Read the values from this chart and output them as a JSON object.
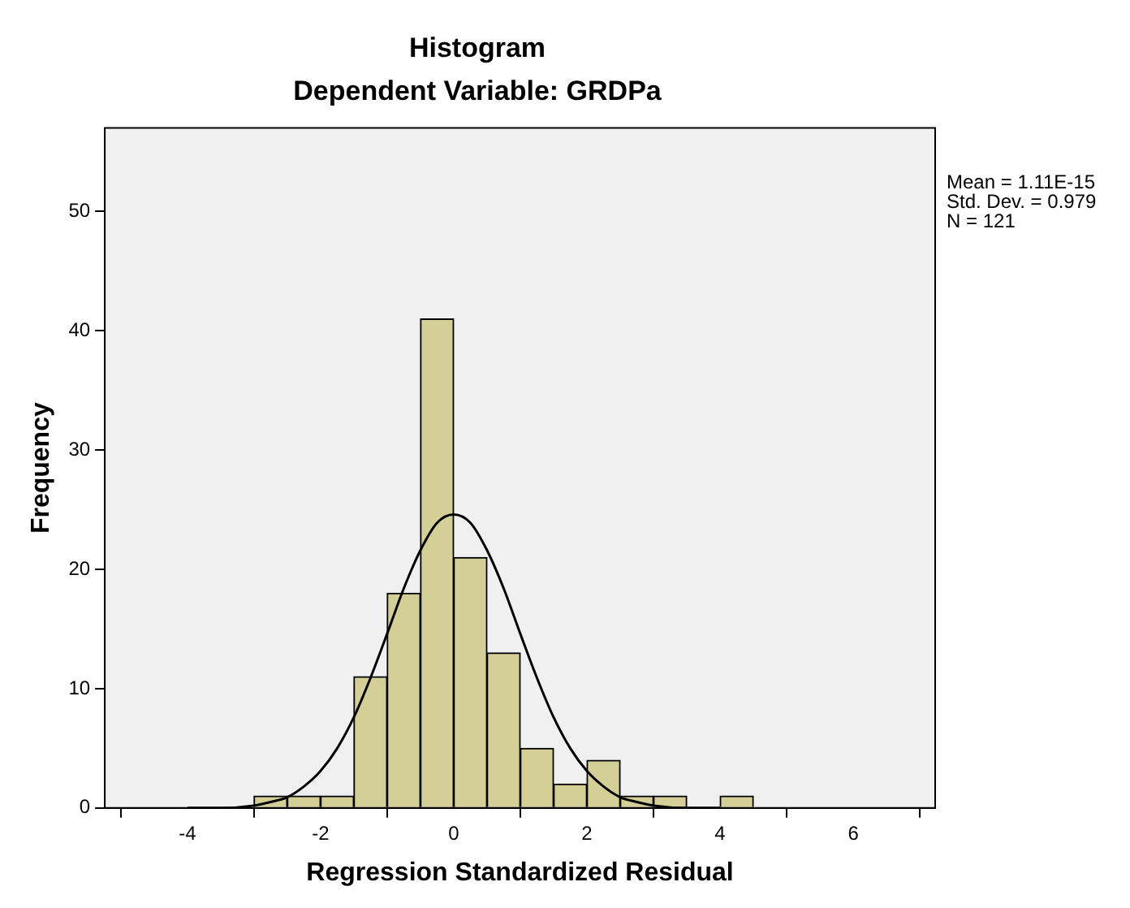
{
  "chart_data": {
    "type": "histogram",
    "title": "Histogram",
    "subtitle": "Dependent Variable: GRDPa",
    "xlabel": "Regression Standardized Residual",
    "ylabel": "Frequency",
    "bins": [
      -3,
      -2.5,
      -2,
      -1.5,
      -1,
      -0.5,
      0,
      0.5,
      1,
      1.5,
      2,
      2.5,
      3,
      3.5,
      4,
      4.5
    ],
    "values": [
      1,
      1,
      1,
      11,
      18,
      41,
      21,
      13,
      5,
      2,
      4,
      1,
      1,
      0,
      1
    ],
    "color": "#d3cf96",
    "series": [
      {
        "type": "line",
        "color": "#000000",
        "x": [
          -4,
          -3.5,
          -3,
          -2.75,
          -2.5,
          -2.25,
          -2,
          -1.75,
          -1.5,
          -1.25,
          -1,
          -0.75,
          -0.5,
          -0.25,
          0,
          0.25,
          0.5,
          0.75,
          1,
          1.25,
          1.5,
          1.75,
          2,
          2.25,
          2.5,
          2.75,
          3,
          3.5,
          4
        ],
        "values": [
          0,
          0,
          0.2,
          0.5,
          0.9,
          1.8,
          3.1,
          5,
          7.6,
          10.9,
          14.6,
          18.4,
          21.6,
          23.9,
          24.6,
          23.9,
          21.6,
          18.4,
          14.6,
          10.9,
          7.6,
          5,
          3.1,
          1.8,
          0.9,
          0.5,
          0.2,
          0,
          0
        ]
      }
    ],
    "xlim": [
      -5.24,
      7.23
    ],
    "xticks": [
      -4,
      -2,
      0,
      2,
      4,
      6
    ],
    "ylim": [
      0,
      57
    ],
    "yticks": [
      0,
      10,
      20,
      30,
      40,
      50
    ],
    "grid": false,
    "legend": false,
    "marker": "none",
    "annotations": [
      "Mean = 1.11E-15",
      "Std. Dev. = 0.979",
      "N = 121"
    ]
  }
}
